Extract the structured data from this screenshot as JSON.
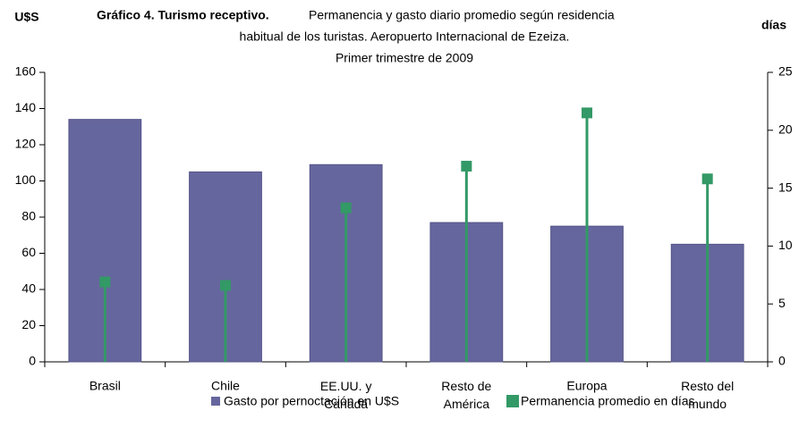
{
  "chart_data": {
    "type": "bar",
    "title": "Gráfico 4. Turismo receptivo.",
    "subtitle": [
      "Permanencia y gasto diario promedio según residencia",
      "habitual de los turistas. Aeropuerto Internacional de Ezeiza.",
      "Primer trimestre de 2009"
    ],
    "y_label": "U$S",
    "y2_label": "días",
    "categories": [
      "Brasil",
      "Chile",
      "EE.UU. y\nCanadá",
      "Resto de\nAmérica",
      "Europa",
      "Resto del\nmundo"
    ],
    "series": [
      {
        "name": "Gasto por pernoctación en U$S",
        "color": "#66669e",
        "values": [
          134,
          105,
          109,
          77,
          75,
          65
        ]
      },
      {
        "name": "Permanencia promedio en días",
        "color": "#339966",
        "axis": "y2",
        "values": [
          6.9,
          6.6,
          13.3,
          16.9,
          21.5,
          15.8
        ]
      }
    ],
    "ylim": [
      0,
      160
    ],
    "yticks": [
      0,
      20,
      40,
      60,
      80,
      100,
      120,
      140,
      160
    ],
    "y2lim": [
      0,
      25
    ],
    "y2ticks": [
      0,
      5,
      10,
      15,
      20,
      25
    ]
  }
}
